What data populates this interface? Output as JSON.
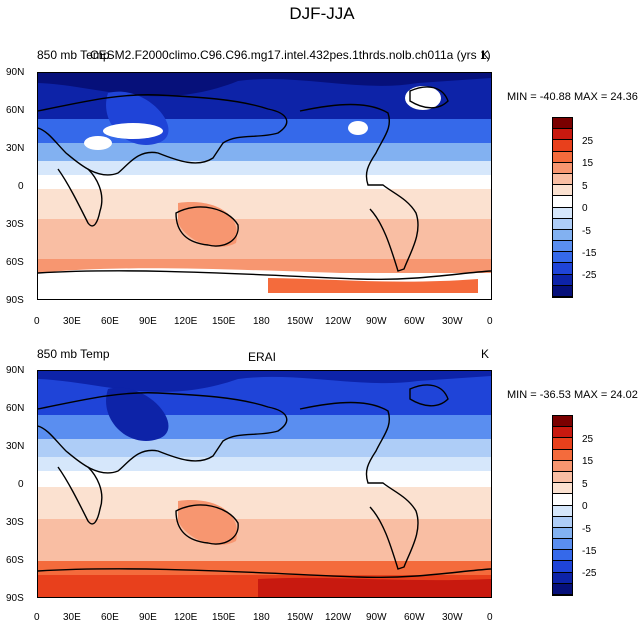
{
  "main_title": "DJF-JJA",
  "panels": [
    {
      "left_label": "850 mb Temp",
      "center_label": "CESM2.F2000climo.C96.C96.mg17.intel.432pes.1thrds.nolb.ch011a (yrs 1)",
      "units": "K",
      "stats": "MIN = -40.88 MAX =  24.36"
    },
    {
      "left_label": "850 mb Temp",
      "center_label": "ERAI",
      "units": "K",
      "stats": "MIN = -36.53 MAX =  24.02"
    }
  ],
  "lat_ticks": [
    "90N",
    "60N",
    "30N",
    "0",
    "30S",
    "60S",
    "90S"
  ],
  "lon_ticks": [
    "0",
    "30E",
    "60E",
    "90E",
    "120E",
    "150E",
    "180",
    "150W",
    "120W",
    "90W",
    "60W",
    "30W",
    "0"
  ],
  "colorbar": {
    "labels": [
      "25",
      "15",
      "5",
      "0",
      "-5",
      "-15",
      "-25"
    ],
    "colors": [
      "#7a0000",
      "#c8190f",
      "#e8401c",
      "#f46b3c",
      "#f79670",
      "#f9bea3",
      "#fbe1d0",
      "#ffffff",
      "#d6e7fb",
      "#aecdf7",
      "#82b1f1",
      "#5a8ef0",
      "#3569ea",
      "#1f44d8",
      "#0d23a8",
      "#06107a"
    ]
  }
}
